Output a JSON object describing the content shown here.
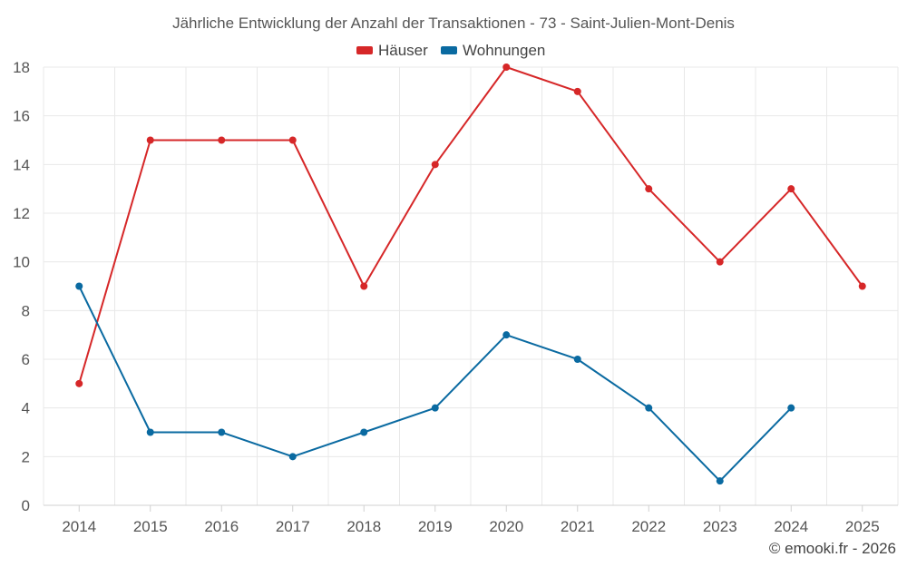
{
  "chart_data": {
    "type": "line",
    "title": "Jährliche Entwicklung der Anzahl der Transaktionen - 73 - Saint-Julien-Mont-Denis",
    "categories": [
      "2014",
      "2015",
      "2016",
      "2017",
      "2018",
      "2019",
      "2020",
      "2021",
      "2022",
      "2023",
      "2024",
      "2025"
    ],
    "ylim": [
      0,
      18
    ],
    "yticks": [
      0,
      2,
      4,
      6,
      8,
      10,
      12,
      14,
      16,
      18
    ],
    "grid": true,
    "legend_position": "top-center",
    "series": [
      {
        "name": "Häuser",
        "color": "#d62728",
        "values": [
          5,
          15,
          15,
          15,
          9,
          14,
          18,
          17,
          13,
          10,
          13,
          9
        ]
      },
      {
        "name": "Wohnungen",
        "color": "#0a6aa1",
        "values": [
          9,
          3,
          3,
          2,
          3,
          4,
          7,
          6,
          4,
          1,
          4,
          null
        ]
      }
    ]
  },
  "credit": "© emooki.fr - 2026"
}
